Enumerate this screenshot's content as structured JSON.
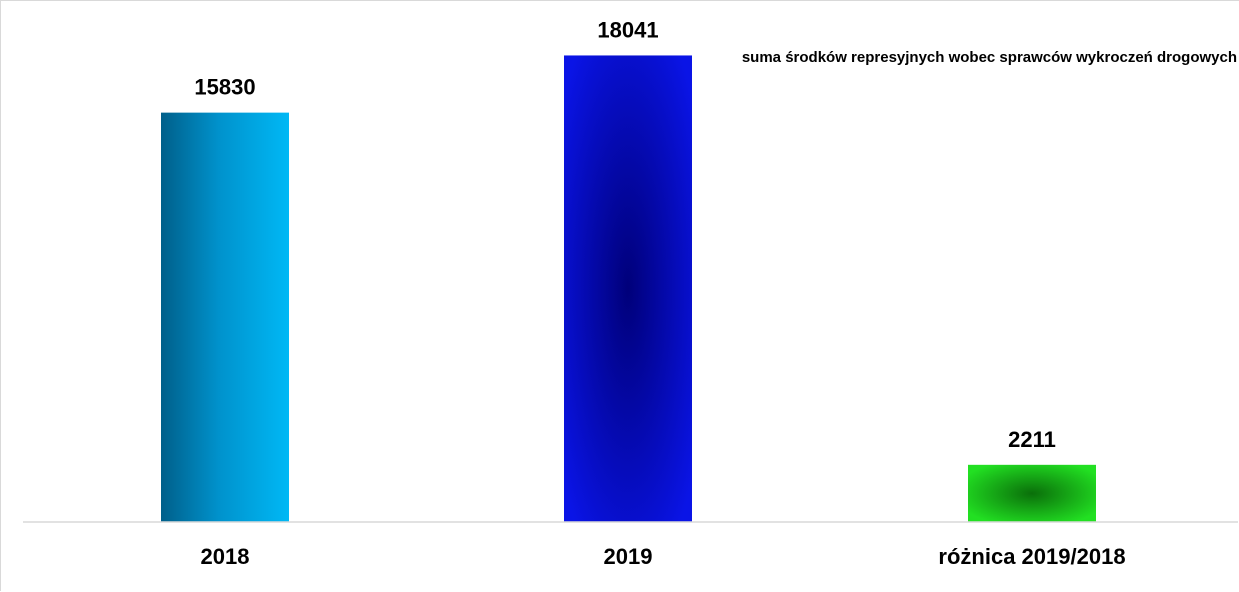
{
  "chart_data": {
    "type": "bar",
    "title": "suma środków represyjnych wobec sprawców wykroczeń drogowych",
    "categories": [
      "2018",
      "2019",
      "różnica 2019/2018"
    ],
    "values": [
      15830,
      18041,
      2211
    ],
    "ylim": [
      0,
      18600
    ],
    "grid": false,
    "legend": "none",
    "colors": [
      {
        "name": "2018",
        "from": "#005f8a",
        "to": "#00b8f5"
      },
      {
        "name": "2019",
        "center": "#00007a",
        "edge": "#0a14e6"
      },
      {
        "name": "różnica 2019/2018",
        "center": "#0a6f0a",
        "edge": "#22e022"
      }
    ]
  }
}
